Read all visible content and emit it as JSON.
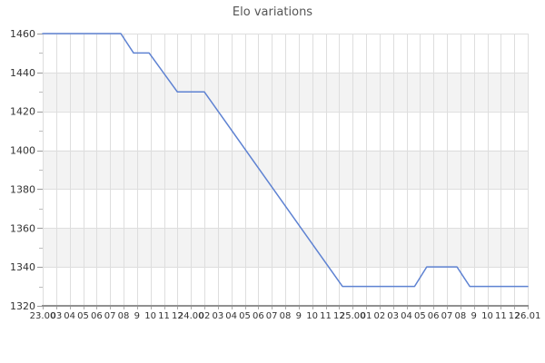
{
  "page": {
    "title": "Elo variations"
  },
  "colors": {
    "background": "#ffffff",
    "title_text": "#555555",
    "axis_text": "#333333",
    "gridline": "#dedede",
    "band_gray": "#f3f3f3",
    "axis_line": "#909090",
    "major_tick": "#999999",
    "minor_tick": "#bbbbbb",
    "x_tick": "#aaaaaa",
    "line": "#5e82d2"
  },
  "chart_data": {
    "type": "line",
    "title": "Elo variations",
    "xlabel": "",
    "ylabel": "",
    "legend": "none",
    "grid": true,
    "ylim": [
      1320,
      1460
    ],
    "y_major_step": 20,
    "y_minor_step": 10,
    "y_major_ticks": [
      1320,
      1340,
      1360,
      1380,
      1400,
      1420,
      1440,
      1460
    ],
    "y_minor_ticks": [
      1330,
      1350,
      1370,
      1390,
      1410,
      1430,
      1450
    ],
    "gray_bands": [
      [
        1420,
        1440
      ],
      [
        1380,
        1400
      ],
      [
        1340,
        1360
      ]
    ],
    "x_tick_labels": [
      "23.00",
      "03",
      "04",
      "05",
      "06",
      "07",
      "08",
      "9",
      "10",
      "11",
      "12",
      "24.00",
      "02",
      "03",
      "04",
      "05",
      "06",
      "07",
      "08",
      "9",
      "10",
      "11",
      "12",
      "25.00",
      "01",
      "02",
      "03",
      "04",
      "05",
      "06",
      "07",
      "08",
      "9",
      "10",
      "11",
      "12",
      "26.01"
    ],
    "series": [
      {
        "name": "Elo",
        "color": "#5e82d2",
        "points_tick_elo": [
          [
            0,
            1460
          ],
          [
            5.8,
            1460
          ],
          [
            6.75,
            1450
          ],
          [
            7.9,
            1450
          ],
          [
            10,
            1430
          ],
          [
            12,
            1430
          ],
          [
            22.25,
            1330
          ],
          [
            27.6,
            1330
          ],
          [
            28.5,
            1340
          ],
          [
            30.75,
            1340
          ],
          [
            31.7,
            1330
          ],
          [
            36,
            1330
          ]
        ]
      }
    ]
  }
}
